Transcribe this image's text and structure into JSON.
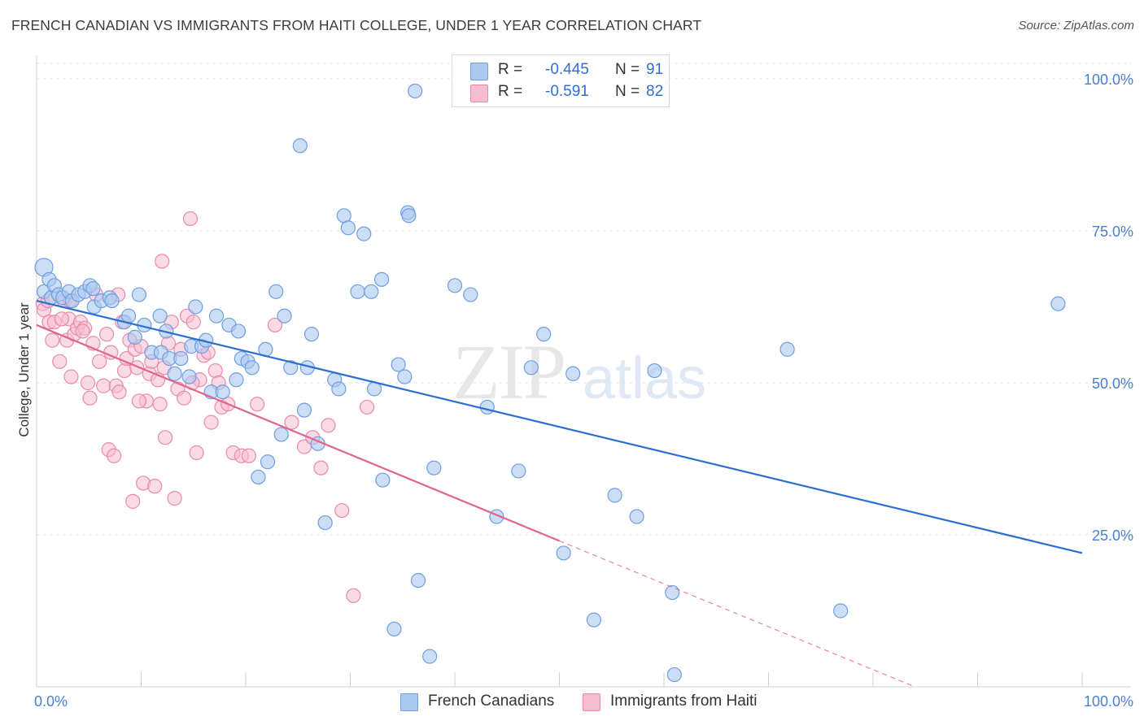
{
  "header": {
    "title": "FRENCH CANADIAN VS IMMIGRANTS FROM HAITI COLLEGE, UNDER 1 YEAR CORRELATION CHART",
    "source": "Source: ZipAtlas.com"
  },
  "watermark": {
    "text_zip": "ZIP",
    "text_atlas": "atlas"
  },
  "legend_top": {
    "rows": [
      {
        "r_label": "R =",
        "r_value": "-0.445",
        "n_label": "N =",
        "n_value": "91"
      },
      {
        "r_label": "R =",
        "r_value": "-0.591",
        "n_label": "N =",
        "n_value": "82"
      }
    ]
  },
  "legend_bottom": {
    "series_a": "French Canadians",
    "series_b": "Immigrants from Haiti"
  },
  "colors": {
    "blue_fill": "#aac8f0",
    "blue_stroke": "#6f9ee0",
    "blue_line": "#2a6fd0",
    "pink_fill": "#f6bcd0",
    "pink_stroke": "#e98aac",
    "pink_line": "#e0648e",
    "grid": "#e2e2e2",
    "tick_text": "#4a7fd0"
  },
  "chart_data": {
    "type": "scatter",
    "title": "FRENCH CANADIAN VS IMMIGRANTS FROM HAITI COLLEGE, UNDER 1 YEAR CORRELATION CHART",
    "xlabel": "",
    "ylabel": "College, Under 1 year",
    "xlim": [
      0,
      100
    ],
    "ylim": [
      0,
      100
    ],
    "x_tick_labels": [
      "0.0%",
      "100.0%"
    ],
    "y_tick_labels": [
      "25.0%",
      "50.0%",
      "75.0%",
      "100.0%"
    ],
    "y_ticks": [
      25,
      50,
      75,
      100
    ],
    "grid": true,
    "legend_placement": "top-center and bottom",
    "series": [
      {
        "name": "French Canadians",
        "r": -0.445,
        "n": 91,
        "trend": {
          "x0": 0,
          "y0": 63.5,
          "x1": 100,
          "y1": 22.0
        },
        "points": [
          [
            0.7,
            69
          ],
          [
            0.7,
            65
          ],
          [
            1.2,
            67
          ],
          [
            1.4,
            64
          ],
          [
            1.7,
            66
          ],
          [
            2.1,
            64.5
          ],
          [
            2.5,
            64
          ],
          [
            3.1,
            65
          ],
          [
            3.4,
            63.5
          ],
          [
            4.0,
            64.5
          ],
          [
            4.6,
            65
          ],
          [
            5.1,
            66
          ],
          [
            5.4,
            65.5
          ],
          [
            5.5,
            62.5
          ],
          [
            6.2,
            63.5
          ],
          [
            7.0,
            64
          ],
          [
            7.2,
            63.5
          ],
          [
            8.4,
            60
          ],
          [
            8.8,
            61
          ],
          [
            9.4,
            57.5
          ],
          [
            9.8,
            64.5
          ],
          [
            10.3,
            59.5
          ],
          [
            11.0,
            55
          ],
          [
            11.8,
            61
          ],
          [
            11.9,
            55
          ],
          [
            12.4,
            58.5
          ],
          [
            12.7,
            54
          ],
          [
            13.2,
            51.5
          ],
          [
            13.8,
            54
          ],
          [
            14.6,
            51
          ],
          [
            14.8,
            56
          ],
          [
            15.2,
            62.5
          ],
          [
            15.8,
            56
          ],
          [
            16.2,
            57
          ],
          [
            16.7,
            48.5
          ],
          [
            17.2,
            61
          ],
          [
            17.8,
            48.5
          ],
          [
            18.4,
            59.5
          ],
          [
            19.1,
            50.5
          ],
          [
            19.3,
            58.5
          ],
          [
            19.6,
            54
          ],
          [
            20.2,
            53.5
          ],
          [
            20.6,
            52.5
          ],
          [
            21.9,
            55.5
          ],
          [
            21.2,
            34.5
          ],
          [
            22.1,
            37
          ],
          [
            22.9,
            65
          ],
          [
            23.4,
            41.5
          ],
          [
            23.7,
            61
          ],
          [
            24.3,
            52.5
          ],
          [
            25.2,
            89
          ],
          [
            25.6,
            45.5
          ],
          [
            25.9,
            52.5
          ],
          [
            26.3,
            58
          ],
          [
            26.9,
            40
          ],
          [
            27.6,
            27
          ],
          [
            28.5,
            50.5
          ],
          [
            28.9,
            49
          ],
          [
            29.4,
            77.5
          ],
          [
            29.8,
            75.5
          ],
          [
            30.7,
            65
          ],
          [
            31.3,
            74.5
          ],
          [
            32.0,
            65
          ],
          [
            32.3,
            49
          ],
          [
            33.0,
            67
          ],
          [
            33.1,
            34
          ],
          [
            34.2,
            9.5
          ],
          [
            34.6,
            53
          ],
          [
            35.2,
            51
          ],
          [
            35.5,
            78
          ],
          [
            35.6,
            77.5
          ],
          [
            36.2,
            98
          ],
          [
            36.5,
            17.5
          ],
          [
            37.6,
            5
          ],
          [
            38.0,
            36
          ],
          [
            40.0,
            66
          ],
          [
            41.5,
            64.5
          ],
          [
            43.1,
            46
          ],
          [
            44.0,
            28
          ],
          [
            46.1,
            35.5
          ],
          [
            47.3,
            52.5
          ],
          [
            48.5,
            58
          ],
          [
            50.4,
            22
          ],
          [
            51.3,
            51.5
          ],
          [
            53.3,
            11
          ],
          [
            55.3,
            31.5
          ],
          [
            57.4,
            28
          ],
          [
            59.1,
            52
          ],
          [
            60.8,
            15.5
          ],
          [
            61.0,
            2
          ],
          [
            71.8,
            55.5
          ],
          [
            76.9,
            12.5
          ],
          [
            97.7,
            63
          ]
        ]
      },
      {
        "name": "Immigrants from Haiti",
        "r": -0.591,
        "n": 82,
        "trend": {
          "x0": 0,
          "y0": 59.5,
          "x1": 50,
          "y1": 24.0,
          "dash_to_x": 84,
          "dash_to_y": 0
        },
        "points": [
          [
            0.6,
            63
          ],
          [
            0.7,
            62
          ],
          [
            1.1,
            63.5
          ],
          [
            1.2,
            60
          ],
          [
            1.5,
            57
          ],
          [
            1.7,
            60
          ],
          [
            2.2,
            53.5
          ],
          [
            2.6,
            63.5
          ],
          [
            2.9,
            57
          ],
          [
            3.1,
            60.5
          ],
          [
            3.3,
            51
          ],
          [
            3.6,
            58
          ],
          [
            3.9,
            59
          ],
          [
            4.2,
            60
          ],
          [
            4.6,
            59
          ],
          [
            4.9,
            50
          ],
          [
            5.1,
            47.5
          ],
          [
            5.4,
            56.5
          ],
          [
            5.7,
            64.5
          ],
          [
            6.0,
            53.5
          ],
          [
            6.4,
            49.5
          ],
          [
            6.7,
            58
          ],
          [
            6.9,
            39
          ],
          [
            7.1,
            55
          ],
          [
            7.4,
            38
          ],
          [
            7.6,
            49.5
          ],
          [
            7.9,
            48.5
          ],
          [
            8.2,
            60
          ],
          [
            8.4,
            52
          ],
          [
            8.6,
            54
          ],
          [
            8.9,
            57
          ],
          [
            9.2,
            30.5
          ],
          [
            9.4,
            55.5
          ],
          [
            9.6,
            52.5
          ],
          [
            10.0,
            56
          ],
          [
            10.2,
            33.5
          ],
          [
            10.5,
            47
          ],
          [
            10.8,
            51.5
          ],
          [
            11.0,
            53.5
          ],
          [
            11.3,
            33
          ],
          [
            11.6,
            50.5
          ],
          [
            11.8,
            46.5
          ],
          [
            12.0,
            70
          ],
          [
            12.3,
            41
          ],
          [
            12.6,
            56.5
          ],
          [
            12.9,
            60
          ],
          [
            13.2,
            31
          ],
          [
            13.5,
            49
          ],
          [
            13.8,
            55.5
          ],
          [
            14.1,
            47.5
          ],
          [
            14.4,
            61
          ],
          [
            14.7,
            77
          ],
          [
            15.0,
            60
          ],
          [
            15.3,
            38.5
          ],
          [
            15.6,
            50.5
          ],
          [
            16.0,
            54.5
          ],
          [
            16.4,
            55
          ],
          [
            16.7,
            43.5
          ],
          [
            17.1,
            52
          ],
          [
            17.7,
            46
          ],
          [
            18.3,
            46.5
          ],
          [
            18.8,
            38.5
          ],
          [
            19.6,
            38
          ],
          [
            20.3,
            38
          ],
          [
            21.1,
            46.5
          ],
          [
            22.8,
            59.5
          ],
          [
            24.4,
            43.5
          ],
          [
            25.6,
            39.5
          ],
          [
            26.4,
            41
          ],
          [
            27.2,
            36
          ],
          [
            27.9,
            43
          ],
          [
            29.2,
            29
          ],
          [
            30.3,
            15
          ],
          [
            31.6,
            46
          ],
          [
            7.8,
            64.5
          ],
          [
            3.2,
            63.5
          ],
          [
            2.4,
            60.5
          ],
          [
            4.4,
            58.5
          ],
          [
            9.8,
            47
          ],
          [
            12.2,
            52.5
          ],
          [
            14.9,
            50
          ],
          [
            17.4,
            50
          ]
        ]
      }
    ]
  }
}
